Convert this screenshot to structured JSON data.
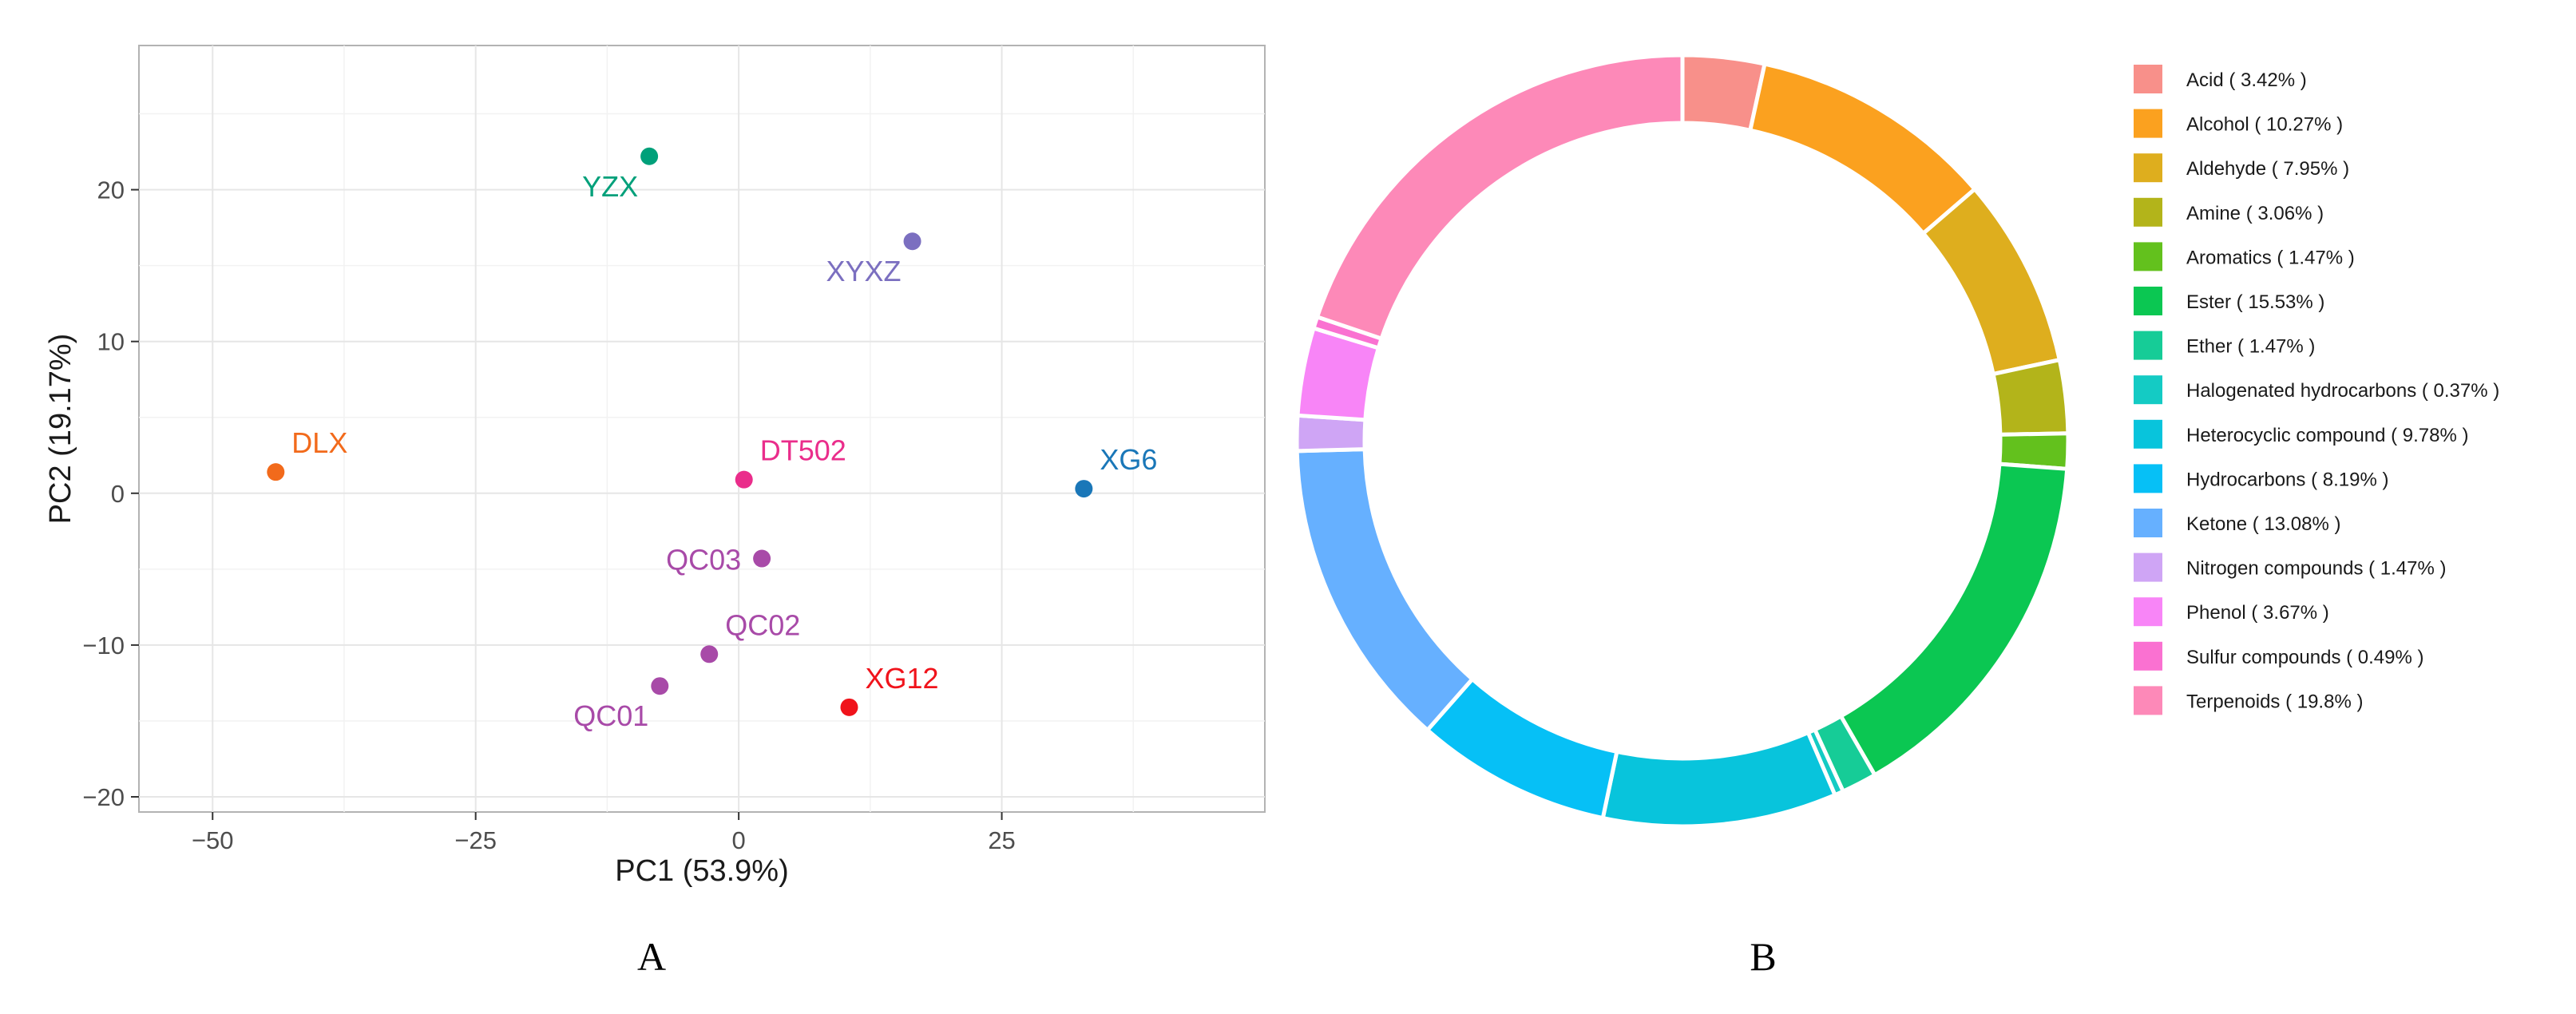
{
  "chart_data": [
    {
      "type": "scatter",
      "panel": "A",
      "xlabel": "PC1 (53.9%)",
      "ylabel": "PC2 (19.17%)",
      "xlim": [
        -57,
        50
      ],
      "ylim": [
        -21,
        29.5
      ],
      "xticks": [
        -50,
        -25,
        0,
        25
      ],
      "xtick_labels": [
        "−50",
        "−25",
        "0",
        "25"
      ],
      "yticks": [
        -20,
        -10,
        0,
        10,
        20
      ],
      "ytick_labels": [
        "−20",
        "−10",
        "0",
        "10",
        "20"
      ],
      "grid": true,
      "points": [
        {
          "label": "YZX",
          "x": -8.5,
          "y": 22.2,
          "color": "#00a07a",
          "label_pos": "below-left"
        },
        {
          "label": "XYXZ",
          "x": 16.5,
          "y": 16.6,
          "color": "#7b6fc0",
          "label_pos": "below-left"
        },
        {
          "label": "DLX",
          "x": -44.0,
          "y": 1.4,
          "color": "#f26a1b",
          "label_pos": "above-right"
        },
        {
          "label": "DT502",
          "x": 0.5,
          "y": 0.9,
          "color": "#ea2d8b",
          "label_pos": "above-right"
        },
        {
          "label": "XG6",
          "x": 32.8,
          "y": 0.3,
          "color": "#1a77b8",
          "label_pos": "above-right"
        },
        {
          "label": "QC03",
          "x": 2.2,
          "y": -4.3,
          "color": "#a84aa8",
          "label_pos": "left"
        },
        {
          "label": "QC02",
          "x": -2.8,
          "y": -10.6,
          "color": "#a84aa8",
          "label_pos": "above-right"
        },
        {
          "label": "QC01",
          "x": -7.5,
          "y": -12.7,
          "color": "#a84aa8",
          "label_pos": "below-left"
        },
        {
          "label": "XG12",
          "x": 10.5,
          "y": -14.1,
          "color": "#f0131b",
          "label_pos": "above-right"
        }
      ]
    },
    {
      "type": "pie",
      "panel": "B",
      "donut": true,
      "slices": [
        {
          "label": "Acid",
          "value": 3.42,
          "legend": "Acid ( 3.42% )",
          "color": "#f8908a"
        },
        {
          "label": "Alcohol",
          "value": 10.27,
          "legend": "Alcohol ( 10.27% )",
          "color": "#fba11f"
        },
        {
          "label": "Aldehyde",
          "value": 7.95,
          "legend": "Aldehyde ( 7.95% )",
          "color": "#deae1e"
        },
        {
          "label": "Amine",
          "value": 3.06,
          "legend": "Amine ( 3.06% )",
          "color": "#b3b41a"
        },
        {
          "label": "Aromatics",
          "value": 1.47,
          "legend": "Aromatics ( 1.47% )",
          "color": "#63c11d"
        },
        {
          "label": "Ester",
          "value": 15.53,
          "legend": "Ester ( 15.53% )",
          "color": "#0bc752"
        },
        {
          "label": "Ether",
          "value": 1.47,
          "legend": "Ether ( 1.47% )",
          "color": "#16cc97"
        },
        {
          "label": "Halogenated hydrocarbons",
          "value": 0.37,
          "legend": "Halogenated hydrocarbons ( 0.37% )",
          "color": "#14cbc4"
        },
        {
          "label": "Heterocyclic compound",
          "value": 9.78,
          "legend": "Heterocyclic compound ( 9.78% )",
          "color": "#08c4dc"
        },
        {
          "label": "Hydrocarbons",
          "value": 8.19,
          "legend": "Hydrocarbons ( 8.19% )",
          "color": "#06c0f6"
        },
        {
          "label": "Ketone",
          "value": 13.08,
          "legend": "Ketone ( 13.08% )",
          "color": "#66b0ff"
        },
        {
          "label": "Nitrogen compounds",
          "value": 1.47,
          "legend": "Nitrogen compounds ( 1.47% )",
          "color": "#cfa5f5"
        },
        {
          "label": "Phenol",
          "value": 3.67,
          "legend": "Phenol ( 3.67% )",
          "color": "#f885f7"
        },
        {
          "label": "Sulfur compounds",
          "value": 0.49,
          "legend": "Sulfur compounds ( 0.49% )",
          "color": "#fa71d1"
        },
        {
          "label": "Terpenoids",
          "value": 19.8,
          "legend": "Terpenoids ( 19.8% )",
          "color": "#fd89b8"
        }
      ]
    }
  ],
  "panel_labels": {
    "a": "A",
    "b": "B"
  }
}
